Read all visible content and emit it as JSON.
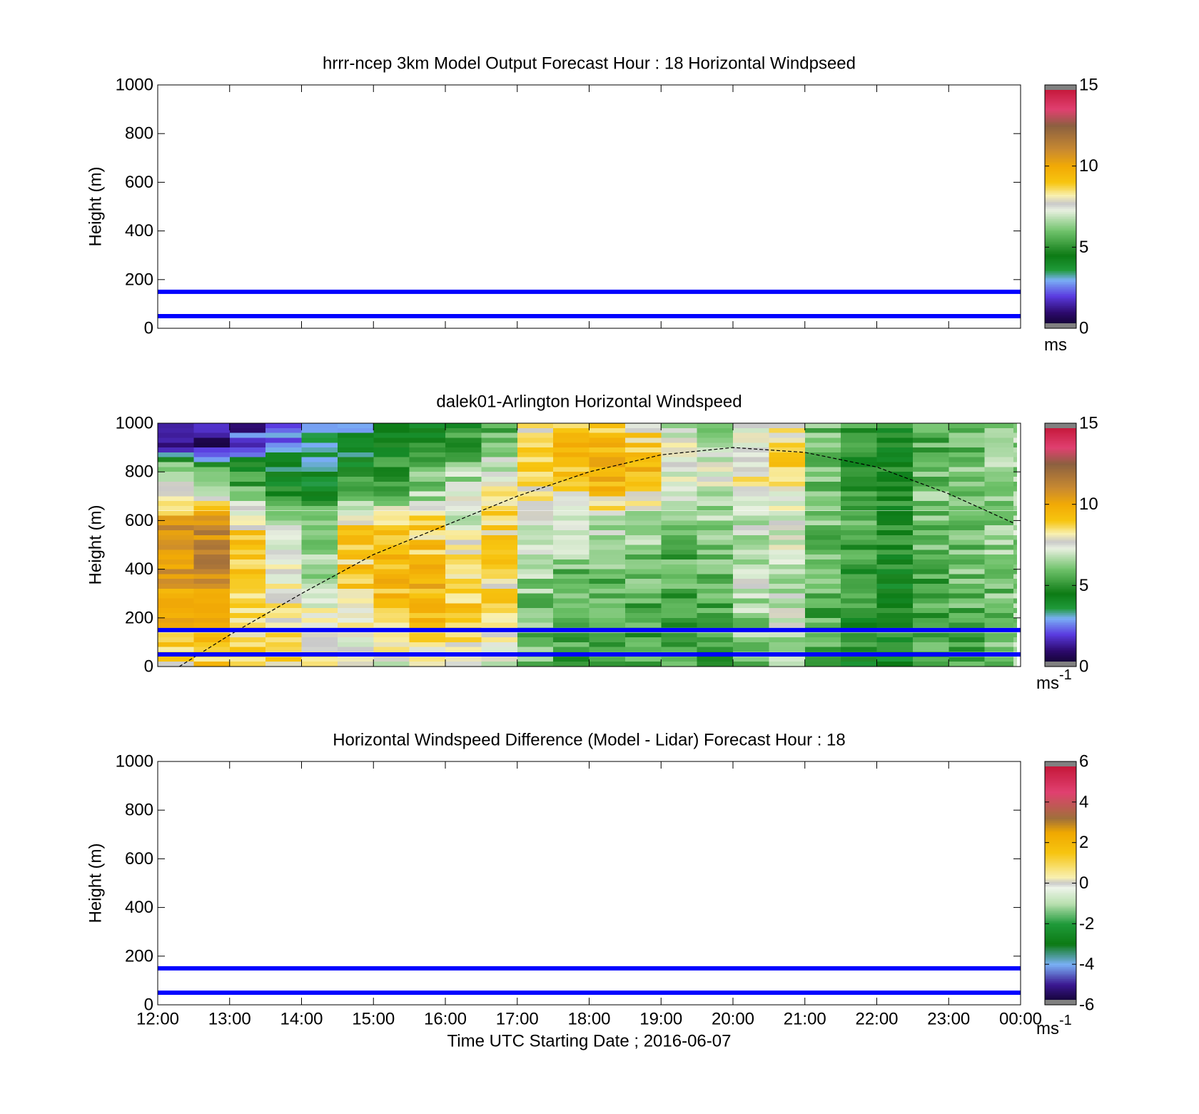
{
  "chart_data": [
    {
      "type": "heatmap",
      "title": "hrrr-ncep 3km Model Output   Forecast Hour : 18 Horizontal Windpseed",
      "xlabel": "",
      "ylabel": "Height (m)",
      "xlim": [
        "12:00",
        "00:00"
      ],
      "ylim": [
        0,
        1000
      ],
      "y_ticks": [
        "0",
        "200",
        "400",
        "600",
        "800",
        "1000"
      ],
      "x_ticks": [
        "12:00",
        "13:00",
        "14:00",
        "15:00",
        "16:00",
        "17:00",
        "18:00",
        "19:00",
        "20:00",
        "21:00",
        "22:00",
        "23:00",
        "00:00"
      ],
      "show_x_tick_labels": false,
      "grid": false,
      "reference_lines_m": [
        50,
        150
      ],
      "colorbar": {
        "range": [
          0,
          15
        ],
        "ticks": [
          "0",
          "5",
          "10",
          "15"
        ],
        "unit": "ms",
        "unit_sup": ""
      },
      "data": "none"
    },
    {
      "type": "heatmap",
      "title": "dalek01-Arlington  Horizontal Windspeed",
      "xlabel": "",
      "ylabel": "Height (m)",
      "xlim": [
        "12:00",
        "00:00"
      ],
      "ylim": [
        0,
        1000
      ],
      "y_ticks": [
        "0",
        "200",
        "400",
        "600",
        "800",
        "1000"
      ],
      "x_ticks": [
        "12:00",
        "13:00",
        "14:00",
        "15:00",
        "16:00",
        "17:00",
        "18:00",
        "19:00",
        "20:00",
        "21:00",
        "22:00",
        "23:00",
        "00:00"
      ],
      "show_x_tick_labels": false,
      "grid": false,
      "reference_lines_m": [
        50,
        150
      ],
      "colorbar": {
        "range": [
          0,
          15
        ],
        "ticks": [
          "0",
          "5",
          "10",
          "15"
        ],
        "unit": "ms",
        "unit_sup": "-1"
      },
      "heights_m": [
        0,
        200,
        400,
        600,
        700,
        800,
        900,
        1000
      ],
      "time_hours": [
        12.0,
        12.5,
        13.0,
        13.5,
        14.0,
        14.5,
        15.0,
        15.5,
        16.0,
        16.5,
        17.0,
        17.5,
        18.0,
        18.5,
        19.0,
        19.5,
        20.0,
        20.5,
        21.0,
        21.5,
        22.0,
        22.5,
        23.0,
        23.5,
        23.9
      ],
      "windspeed_ms": [
        [
          8.5,
          9.5,
          10.5,
          10.5,
          7.0,
          7.5,
          1.5,
          1.0
        ],
        [
          9.0,
          10.0,
          11.0,
          11.0,
          6.5,
          6.0,
          1.0,
          1.0
        ],
        [
          8.5,
          9.0,
          9.0,
          8.5,
          6.0,
          5.0,
          2.5,
          1.5
        ],
        [
          8.5,
          8.0,
          7.5,
          7.0,
          5.0,
          4.0,
          3.0,
          2.0
        ],
        [
          8.0,
          8.0,
          6.5,
          6.0,
          4.5,
          4.0,
          3.0,
          2.5
        ],
        [
          7.5,
          8.0,
          9.0,
          8.5,
          5.5,
          4.5,
          4.0,
          3.0
        ],
        [
          7.5,
          9.0,
          9.5,
          9.0,
          6.0,
          5.0,
          4.5,
          4.0
        ],
        [
          7.5,
          9.5,
          9.5,
          8.5,
          6.5,
          6.0,
          5.0,
          4.5
        ],
        [
          7.5,
          9.0,
          8.5,
          7.5,
          7.0,
          6.5,
          5.5,
          5.0
        ],
        [
          7.0,
          8.5,
          8.5,
          8.5,
          8.0,
          7.0,
          6.5,
          5.5
        ],
        [
          6.0,
          6.0,
          6.5,
          7.5,
          8.0,
          8.5,
          9.0,
          8.0
        ],
        [
          5.5,
          5.5,
          6.0,
          7.0,
          8.0,
          9.0,
          9.5,
          9.0
        ],
        [
          5.5,
          5.5,
          6.0,
          7.0,
          9.0,
          10.0,
          9.5,
          8.5
        ],
        [
          5.5,
          5.5,
          6.0,
          6.5,
          8.5,
          9.5,
          9.0,
          8.0
        ],
        [
          5.5,
          5.5,
          5.5,
          6.0,
          7.0,
          7.5,
          7.5,
          7.0
        ],
        [
          5.5,
          5.5,
          6.0,
          6.5,
          7.0,
          7.5,
          7.0,
          6.5
        ],
        [
          6.0,
          6.5,
          7.0,
          7.0,
          7.5,
          8.0,
          7.5,
          7.0
        ],
        [
          6.5,
          7.0,
          7.0,
          7.5,
          7.5,
          8.5,
          8.5,
          8.0
        ],
        [
          5.5,
          5.5,
          6.0,
          6.0,
          6.0,
          6.0,
          6.0,
          6.0
        ],
        [
          4.5,
          5.0,
          5.0,
          5.5,
          5.5,
          5.0,
          5.0,
          5.0
        ],
        [
          4.5,
          4.5,
          4.5,
          5.0,
          5.0,
          5.0,
          4.5,
          5.0
        ],
        [
          5.5,
          5.5,
          5.5,
          6.0,
          6.0,
          6.0,
          5.5,
          6.0
        ],
        [
          5.5,
          5.5,
          6.0,
          6.0,
          6.0,
          6.0,
          5.5,
          6.0
        ],
        [
          6.0,
          6.0,
          6.0,
          6.5,
          6.5,
          6.5,
          6.0,
          6.0
        ],
        [
          6.5,
          6.5,
          6.5,
          6.5,
          6.5,
          6.5,
          6.5,
          6.5
        ]
      ],
      "dashed_curve": {
        "x_hours": [
          12.3,
          13.0,
          14.0,
          15.0,
          16.0,
          17.0,
          18.0,
          19.0,
          20.0,
          21.0,
          22.0,
          23.0,
          23.9
        ],
        "y_m": [
          0,
          130,
          300,
          460,
          580,
          700,
          800,
          870,
          900,
          880,
          820,
          710,
          590
        ]
      }
    },
    {
      "type": "heatmap",
      "title": "Horizontal Windspeed Difference (Model - Lidar) Forecast Hour : 18",
      "xlabel": "Time UTC  Starting Date ; 2016-06-07",
      "ylabel": "Height (m)",
      "xlim": [
        "12:00",
        "00:00"
      ],
      "ylim": [
        0,
        1000
      ],
      "y_ticks": [
        "0",
        "200",
        "400",
        "600",
        "800",
        "1000"
      ],
      "x_ticks": [
        "12:00",
        "13:00",
        "14:00",
        "15:00",
        "16:00",
        "17:00",
        "18:00",
        "19:00",
        "20:00",
        "21:00",
        "22:00",
        "23:00",
        "00:00"
      ],
      "show_x_tick_labels": true,
      "grid": false,
      "reference_lines_m": [
        50,
        150
      ],
      "colorbar": {
        "range": [
          -6,
          6
        ],
        "ticks": [
          "-6",
          "-4",
          "-2",
          "0",
          "2",
          "4",
          "6"
        ],
        "unit": "ms",
        "unit_sup": "-1"
      },
      "data": "none"
    }
  ]
}
